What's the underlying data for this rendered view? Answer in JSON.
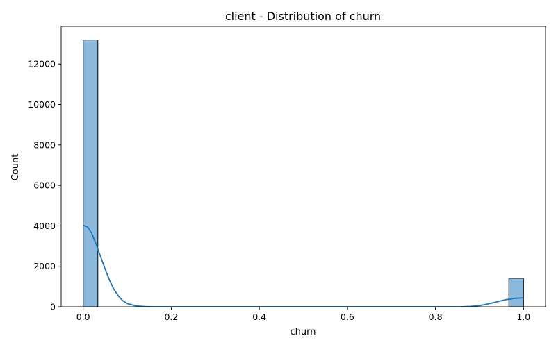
{
  "chart_data": {
    "type": "bar",
    "title": "client - Distribution of churn",
    "xlabel": "churn",
    "ylabel": "Count",
    "xlim": [
      -0.05,
      1.05
    ],
    "ylim": [
      0,
      13860
    ],
    "xticks": [
      0.0,
      0.2,
      0.4,
      0.6,
      0.8,
      1.0
    ],
    "xtick_labels": [
      "0.0",
      "0.2",
      "0.4",
      "0.6",
      "0.8",
      "1.0"
    ],
    "yticks": [
      0,
      2000,
      4000,
      6000,
      8000,
      10000,
      12000
    ],
    "ytick_labels": [
      "0",
      "2000",
      "4000",
      "6000",
      "8000",
      "10000",
      "12000"
    ],
    "grid": false,
    "legend": "none",
    "bar_fill": "#8ab9dd",
    "bar_edge": "#000000",
    "kde_color": "#1f77b4",
    "bins": [
      {
        "x0": 0.0,
        "x1": 0.0333,
        "count": 13190
      },
      {
        "x0": 0.9667,
        "x1": 1.0,
        "count": 1410
      }
    ],
    "kde": {
      "x": [
        0.0,
        0.01,
        0.02,
        0.03,
        0.04,
        0.05,
        0.06,
        0.07,
        0.08,
        0.09,
        0.1,
        0.12,
        0.14,
        0.16,
        0.2,
        0.5,
        0.8,
        0.84,
        0.86,
        0.88,
        0.9,
        0.92,
        0.94,
        0.96,
        0.98,
        1.0
      ],
      "y": [
        4030,
        3950,
        3600,
        3050,
        2450,
        1850,
        1300,
        860,
        530,
        300,
        160,
        40,
        10,
        0,
        0,
        0,
        0,
        0,
        5,
        20,
        60,
        140,
        250,
        350,
        420,
        440
      ]
    }
  }
}
